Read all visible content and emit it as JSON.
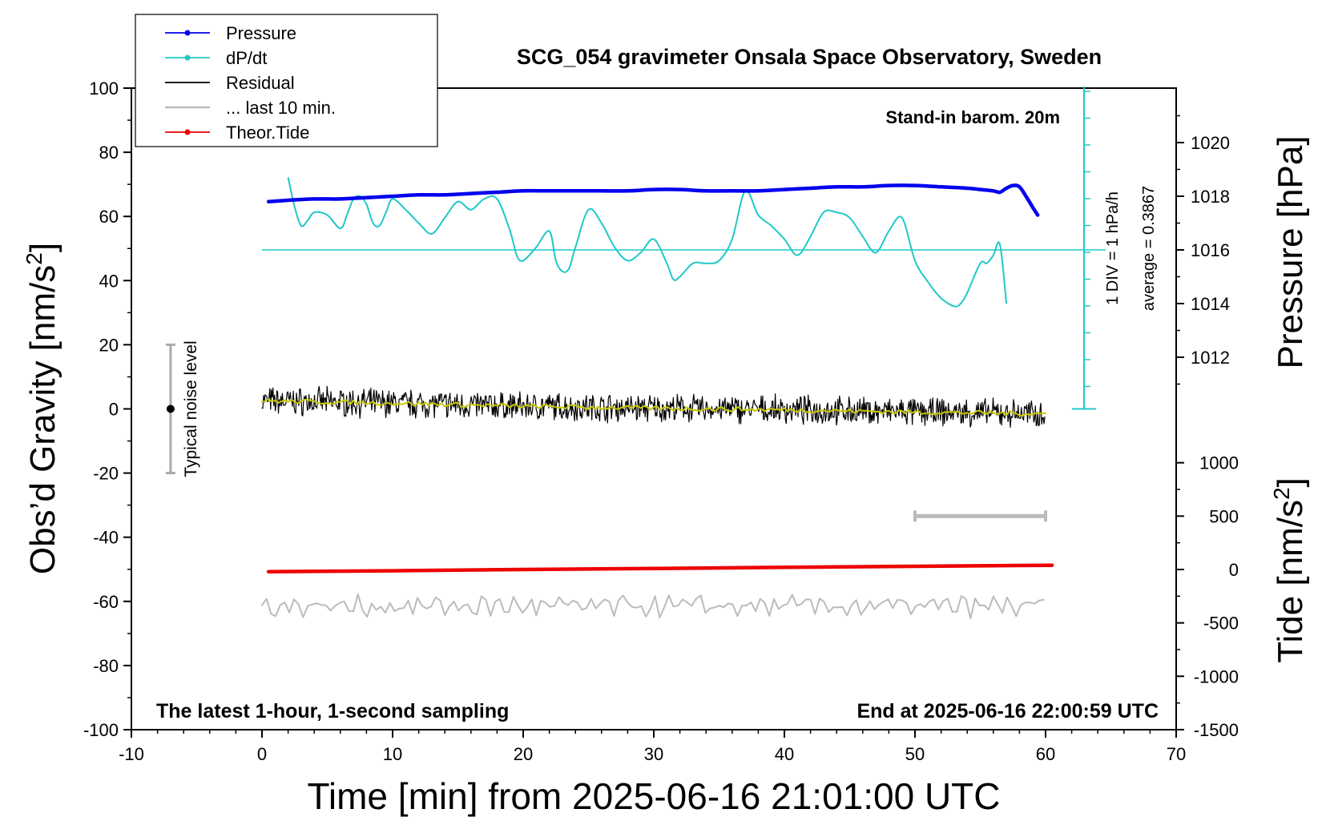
{
  "chart_data": {
    "type": "line",
    "title": "SCG_054 gravimeter Onsala Space Observatory, Sweden",
    "xlabel": "Time [min] from 2025-06-16 21:01:00 UTC",
    "ylabel_left": "Obs’d Gravity [nm/s",
    "ylabel_left_sup": "2",
    "ylabel_left_close": "]",
    "ylabel_right_top": "Pressure [hPa]",
    "ylabel_right_bottom": "Tide [nm/s",
    "ylabel_right_bottom_sup": "2",
    "ylabel_right_bottom_close": "]",
    "xlim": [
      -10,
      70
    ],
    "ylim": [
      -100,
      100
    ],
    "pressure_ylim": [
      1010,
      1022
    ],
    "tide_ylim": [
      -1500,
      1000
    ],
    "x_ticks": [
      "-10",
      "0",
      "10",
      "20",
      "30",
      "40",
      "50",
      "60",
      "70"
    ],
    "y_ticks": [
      "100",
      "80",
      "60",
      "40",
      "20",
      "0",
      "-20",
      "-40",
      "-60",
      "-80",
      "-100"
    ],
    "pressure_ticks": [
      "1020",
      "1018",
      "1016",
      "1014",
      "1012"
    ],
    "tide_ticks": [
      "1000",
      "500",
      "0",
      "-500",
      "-1000",
      "-1500"
    ],
    "legend": {
      "position": "top-left",
      "entries": [
        "Pressure",
        "dP/dt",
        "Residual",
        "... last 10 min.",
        "Theor.Tide"
      ]
    },
    "annotations": {
      "barometer": "Stand-in barom. 20m",
      "div_note": "1 DIV = 1 hPa/h",
      "average_note": "average = 0.3867",
      "noise_label": "Typical noise level",
      "sampling_note": "The latest 1-hour, 1-second sampling",
      "end_note": "End at 2025-06-16 22:00:59 UTC"
    },
    "noise_bar": {
      "x": -7,
      "y_center": 0,
      "y_low": -20,
      "y_high": 20
    },
    "last10_bar": {
      "x_start": 50,
      "x_end": 60,
      "tide_value": 500
    },
    "dpdt_zero_line_pressure": 1016,
    "series": [
      {
        "name": "Pressure",
        "axis": "pressure",
        "x": [
          0.5,
          2,
          4,
          6,
          8,
          10,
          12,
          14,
          16,
          18,
          20,
          22,
          24,
          26,
          28,
          30,
          32,
          34,
          36,
          38,
          40,
          42,
          44,
          46,
          48,
          50,
          52,
          54,
          55,
          56,
          56.5,
          57,
          57.5,
          58,
          58.5,
          59,
          59.4
        ],
        "values": [
          1017.8,
          1017.85,
          1017.9,
          1017.9,
          1017.95,
          1018.0,
          1018.05,
          1018.05,
          1018.1,
          1018.15,
          1018.2,
          1018.2,
          1018.2,
          1018.2,
          1018.2,
          1018.25,
          1018.25,
          1018.2,
          1018.2,
          1018.2,
          1018.25,
          1018.3,
          1018.35,
          1018.35,
          1018.4,
          1018.4,
          1018.35,
          1018.3,
          1018.25,
          1018.2,
          1018.15,
          1018.3,
          1018.4,
          1018.35,
          1018.0,
          1017.6,
          1017.3
        ]
      },
      {
        "name": "dP/dt",
        "axis": "pressure",
        "x": [
          2,
          2.5,
          3,
          3.5,
          4,
          5,
          6,
          6.5,
          7,
          7.5,
          8,
          8.5,
          9,
          9.5,
          10,
          11,
          12,
          13,
          14,
          15,
          16,
          17,
          18,
          19,
          19.5,
          20,
          21,
          22,
          22.5,
          23,
          23.5,
          24,
          25,
          26,
          27,
          28,
          29,
          30,
          31,
          31.5,
          32,
          33,
          34,
          35,
          36,
          37,
          38,
          39,
          40,
          41,
          42,
          43,
          44,
          45,
          46,
          47,
          48,
          49,
          50,
          51,
          52,
          53,
          53.5,
          54,
          55,
          55.5,
          56,
          56.5,
          57
        ],
        "values": [
          1018.7,
          1017.6,
          1016.9,
          1017.1,
          1017.4,
          1017.3,
          1016.8,
          1017.3,
          1017.9,
          1018.0,
          1017.7,
          1017.0,
          1016.9,
          1017.4,
          1017.9,
          1017.5,
          1017.0,
          1016.6,
          1017.2,
          1017.8,
          1017.5,
          1017.9,
          1017.9,
          1016.7,
          1015.8,
          1015.6,
          1016.1,
          1016.7,
          1015.6,
          1015.2,
          1015.3,
          1016.1,
          1017.5,
          1017.0,
          1016.1,
          1015.6,
          1015.9,
          1016.4,
          1015.5,
          1014.9,
          1015.0,
          1015.5,
          1015.5,
          1015.6,
          1016.4,
          1018.2,
          1017.3,
          1016.9,
          1016.4,
          1015.8,
          1016.5,
          1017.4,
          1017.4,
          1017.2,
          1016.5,
          1015.9,
          1016.7,
          1017.2,
          1015.6,
          1014.8,
          1014.2,
          1013.9,
          1014.0,
          1014.4,
          1015.5,
          1015.5,
          1015.8,
          1016.2,
          1014.0
        ]
      },
      {
        "name": "Residual",
        "axis": "gravity",
        "x": [
          0,
          10,
          20,
          30,
          40,
          50,
          60
        ],
        "values": [
          2.5,
          1.8,
          0.8,
          0.2,
          -0.3,
          -1.0,
          -1.5
        ]
      },
      {
        "name": "Theor.Tide",
        "axis": "tide",
        "x": [
          0.5,
          10,
          20,
          30,
          40,
          50,
          60.5
        ],
        "values": [
          -20,
          -12,
          0,
          10,
          20,
          30,
          40
        ]
      },
      {
        "name": "... last 10 min.",
        "axis": "gravity",
        "x": [
          0,
          10,
          20,
          30,
          40,
          50,
          60
        ],
        "values": [
          -61.5,
          -61.5,
          -61.5,
          -61.5,
          -61.5,
          -61.5,
          -61.5
        ]
      }
    ],
    "colors": {
      "pressure": "#0000ee",
      "dpdt": "#20c8c8",
      "residual": "#000000",
      "residual_smooth": "#c8c800",
      "last10": "#bbbbbb",
      "tide": "#ee0000",
      "axis": "#000000"
    }
  }
}
